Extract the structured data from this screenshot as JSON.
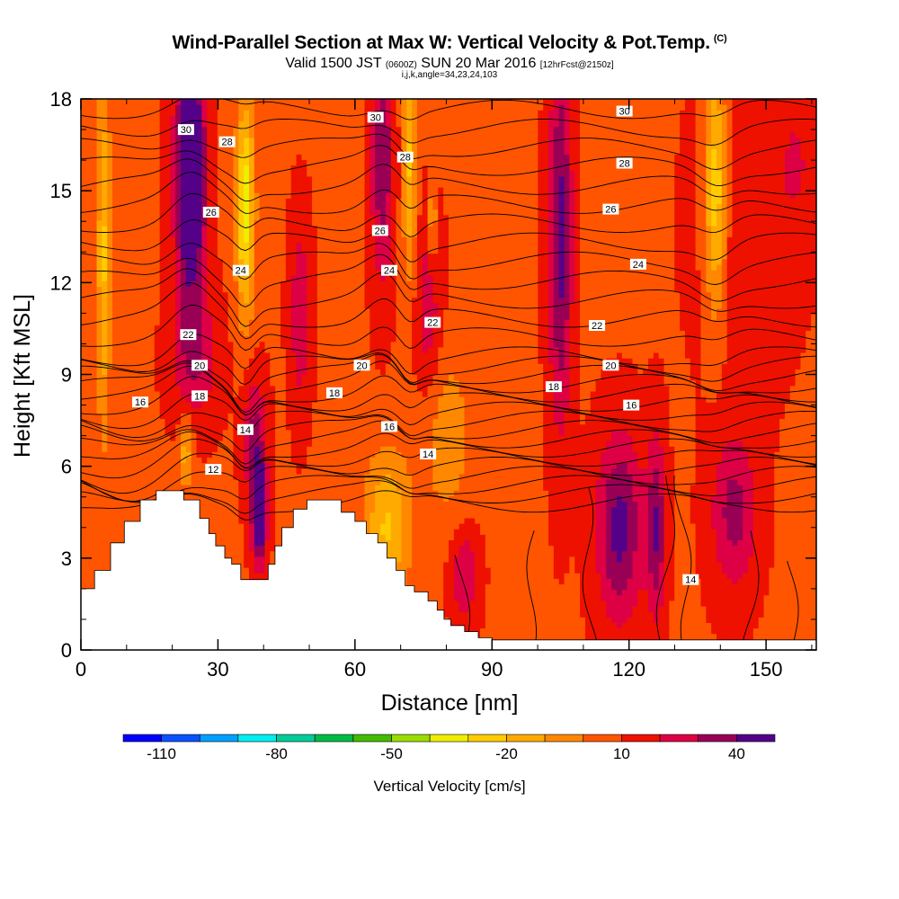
{
  "title": {
    "main": "Wind-Parallel Section at Max W: Vertical Velocity & Pot.Temp.",
    "tag": "(C)",
    "valid_prefix": "Valid 1500 JST",
    "valid_utc": "(0600Z)",
    "valid_date": "SUN 20 Mar 2016",
    "forecast": "[12hrFcst@2150z]",
    "params": "i,j,k,angle=34,23,24,103"
  },
  "colors": {
    "contour_line": "#000000",
    "terrain": "#ffffff",
    "colorbar": [
      "#0000ff",
      "#0a50ff",
      "#00a0ff",
      "#00eeee",
      "#00cc99",
      "#00bb44",
      "#44bb00",
      "#99dd00",
      "#eeee00",
      "#ffcc00",
      "#ffaa00",
      "#ff8800",
      "#ff5500",
      "#ee1100",
      "#dd0044",
      "#990055",
      "#550088"
    ]
  },
  "chart_data": {
    "type": "heatmap",
    "xlabel": "Distance [nm]",
    "ylabel": "Height [Kft MSL]",
    "xlim": [
      0,
      161
    ],
    "ylim": [
      0,
      18
    ],
    "x_ticks": [
      0,
      30,
      60,
      90,
      120,
      150
    ],
    "y_ticks": [
      0,
      3,
      6,
      9,
      12,
      15,
      18
    ],
    "colorbar": {
      "title": "Vertical Velocity [cm/s]",
      "levels": [
        -120,
        -110,
        -100,
        -90,
        -80,
        -70,
        -60,
        -50,
        -40,
        -30,
        -20,
        -10,
        0,
        10,
        20,
        30,
        40,
        50
      ],
      "tick_labels": [
        "-110",
        "-80",
        "-50",
        "-20",
        "10",
        "40"
      ]
    },
    "contour_labels": [
      {
        "value": "30",
        "x": 23,
        "y": 17.0
      },
      {
        "value": "28",
        "x": 32,
        "y": 16.6
      },
      {
        "value": "26",
        "x": 28.5,
        "y": 14.3
      },
      {
        "value": "24",
        "x": 35,
        "y": 12.4
      },
      {
        "value": "22",
        "x": 23.5,
        "y": 10.3
      },
      {
        "value": "20",
        "x": 26,
        "y": 9.3
      },
      {
        "value": "18",
        "x": 26,
        "y": 8.3
      },
      {
        "value": "16",
        "x": 13,
        "y": 8.1
      },
      {
        "value": "14",
        "x": 36,
        "y": 7.2
      },
      {
        "value": "12",
        "x": 29,
        "y": 5.9
      },
      {
        "value": "30",
        "x": 64.5,
        "y": 17.4
      },
      {
        "value": "28",
        "x": 71,
        "y": 16.1
      },
      {
        "value": "26",
        "x": 65.5,
        "y": 13.7
      },
      {
        "value": "24",
        "x": 67.5,
        "y": 12.4
      },
      {
        "value": "22",
        "x": 77,
        "y": 10.7
      },
      {
        "value": "20",
        "x": 61.5,
        "y": 9.3
      },
      {
        "value": "18",
        "x": 55.5,
        "y": 8.4
      },
      {
        "value": "16",
        "x": 67.5,
        "y": 7.3
      },
      {
        "value": "14",
        "x": 76,
        "y": 6.4
      },
      {
        "value": "30",
        "x": 119,
        "y": 17.6
      },
      {
        "value": "28",
        "x": 119,
        "y": 15.9
      },
      {
        "value": "26",
        "x": 116,
        "y": 14.4
      },
      {
        "value": "24",
        "x": 122,
        "y": 12.6
      },
      {
        "value": "22",
        "x": 113,
        "y": 10.6
      },
      {
        "value": "20",
        "x": 116,
        "y": 9.3
      },
      {
        "value": "18",
        "x": 103.5,
        "y": 8.6
      },
      {
        "value": "16",
        "x": 120.5,
        "y": 8.0
      },
      {
        "value": "14",
        "x": 133.5,
        "y": 2.3
      }
    ]
  }
}
